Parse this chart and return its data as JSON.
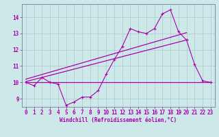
{
  "xlabel": "Windchill (Refroidissement éolien,°C)",
  "ylabel": "",
  "background_color": "#cde8e8",
  "line_color": "#aa00aa",
  "grid_color": "#aacccc",
  "xlim": [
    -0.5,
    23.5
  ],
  "ylim": [
    8.5,
    14.8
  ],
  "yticks": [
    9,
    10,
    11,
    12,
    13,
    14
  ],
  "xticks": [
    0,
    1,
    2,
    3,
    4,
    5,
    6,
    7,
    8,
    9,
    10,
    11,
    12,
    13,
    14,
    15,
    16,
    17,
    18,
    19,
    20,
    21,
    22,
    23
  ],
  "line1_x": [
    0,
    1,
    2,
    3,
    4,
    5,
    6,
    7,
    8,
    9,
    10,
    11,
    12,
    13,
    14,
    15,
    16,
    17,
    18,
    19,
    20,
    21,
    22,
    23
  ],
  "line1_y": [
    10.0,
    9.8,
    10.3,
    10.0,
    9.9,
    8.6,
    8.8,
    9.1,
    9.1,
    9.5,
    10.5,
    11.4,
    12.2,
    13.3,
    13.1,
    13.0,
    13.3,
    14.2,
    14.45,
    13.1,
    12.6,
    11.1,
    10.1,
    10.0
  ],
  "line2_x": [
    0,
    9,
    18,
    20,
    23
  ],
  "line2_y": [
    10.0,
    10.0,
    10.0,
    10.0,
    10.0
  ],
  "line3_x": [
    0,
    20
  ],
  "line3_y": [
    10.05,
    12.6
  ],
  "line4_x": [
    0,
    20
  ],
  "line4_y": [
    10.2,
    13.05
  ]
}
